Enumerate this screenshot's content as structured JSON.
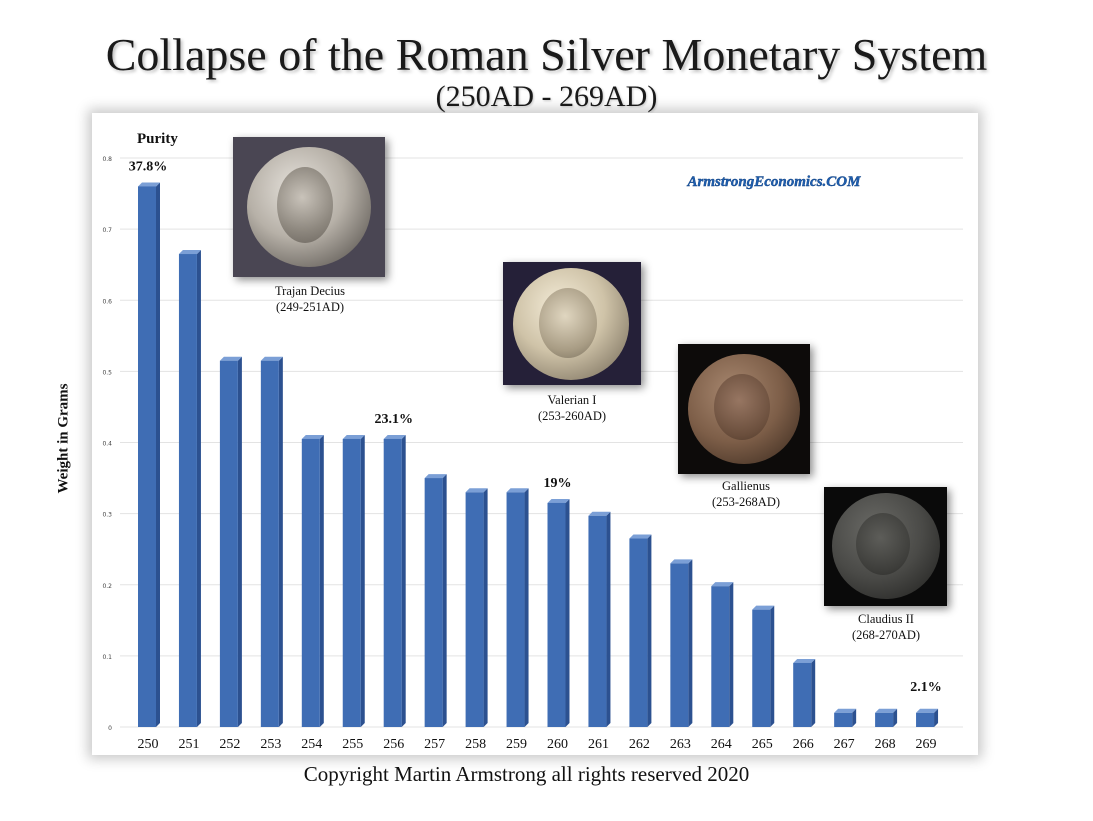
{
  "title": "Collapse of the Roman Silver Monetary System",
  "subtitle": "(250AD - 269AD)",
  "ylabel": "Weight in Grams",
  "purity_label": "Purity",
  "watermark": "ArmstrongEconomics.COM",
  "copyright": "Copyright Martin Armstrong all rights reserved 2020",
  "colors": {
    "bar": "#3f6db4",
    "bar_dark": "#2c5190",
    "bar_top": "#7b9fd6",
    "watermark": "#1f5fb0"
  },
  "coins": [
    {
      "icon": "trajan-decius-coin-icon",
      "name": "Trajan Decius",
      "dates": "(249-251AD)"
    },
    {
      "icon": "valerian-coin-icon",
      "name": "Valerian I",
      "dates": "(253-260AD)"
    },
    {
      "icon": "gallienus-coin-icon",
      "name": "Gallienus",
      "dates": "(253-268AD)"
    },
    {
      "icon": "claudius-coin-icon",
      "name": "Claudius II",
      "dates": "(268-270AD)"
    }
  ],
  "chart_data": {
    "type": "bar",
    "title": "Collapse of the Roman Silver Monetary System",
    "subtitle": "(250AD - 269AD)",
    "xlabel": "",
    "ylabel": "Weight in Grams",
    "categories": [
      "250",
      "251",
      "252",
      "253",
      "254",
      "255",
      "256",
      "257",
      "258",
      "259",
      "260",
      "261",
      "262",
      "263",
      "264",
      "265",
      "266",
      "267",
      "268",
      "269"
    ],
    "values": [
      0.76,
      0.665,
      0.515,
      0.515,
      0.405,
      0.405,
      0.405,
      0.35,
      0.33,
      0.33,
      0.315,
      0.297,
      0.265,
      0.23,
      0.198,
      0.165,
      0.09,
      0.02,
      0.02,
      0.02
    ],
    "ylim": [
      0,
      0.8
    ],
    "yticks": [
      "0",
      "0.1",
      "0.2",
      "0.3",
      "0.4",
      "0.5",
      "0.6",
      "0.7",
      "0.8"
    ],
    "grid": true,
    "annotations": [
      {
        "category": "250",
        "text": "37.8%"
      },
      {
        "category": "256",
        "text": "23.1%"
      },
      {
        "category": "260",
        "text": "19%"
      },
      {
        "category": "269",
        "text": "2.1%"
      }
    ]
  }
}
